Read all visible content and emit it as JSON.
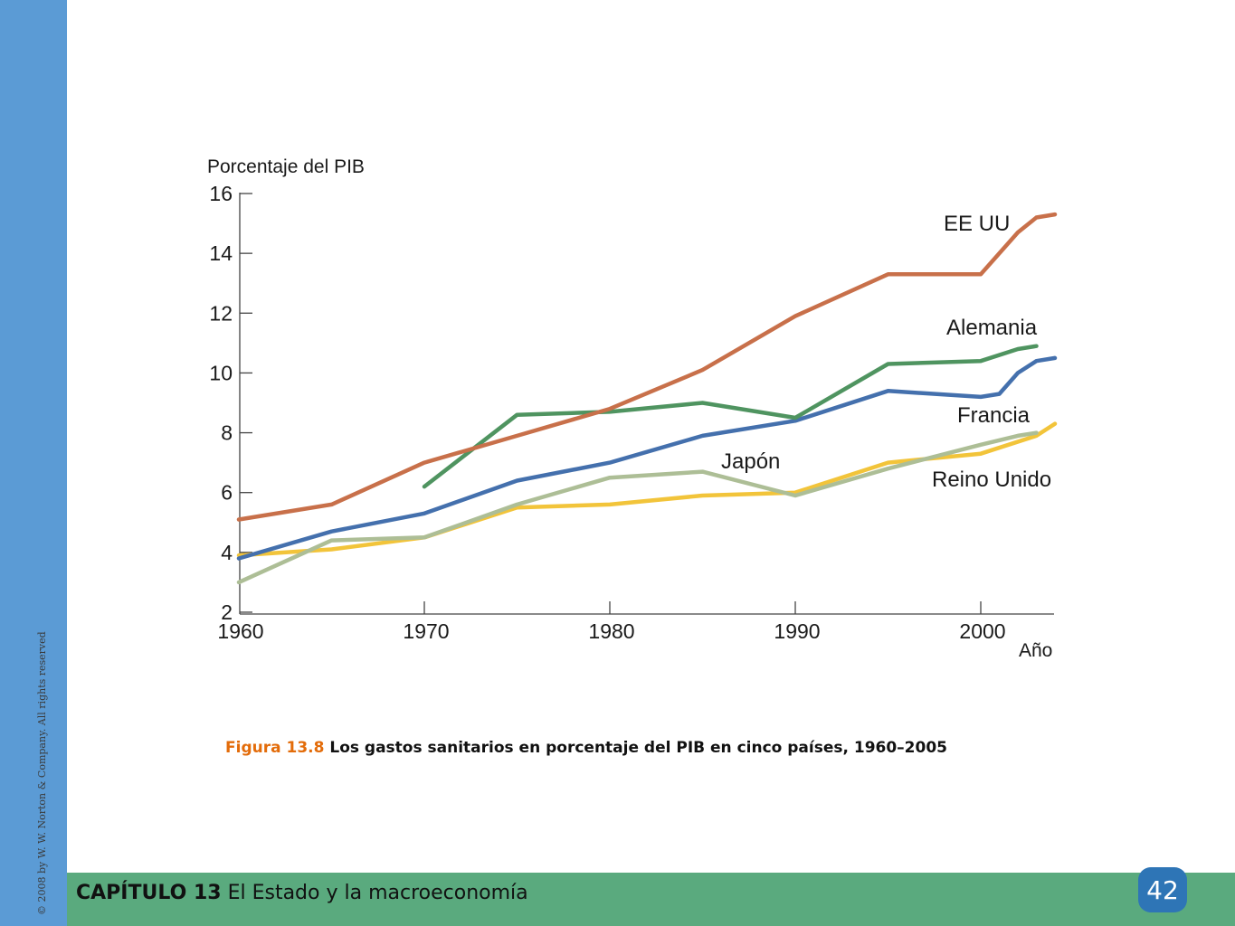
{
  "footer": {
    "copyright": "© 2008 by W. W. Norton & Company. All rights reserved",
    "chapter_label": "CAPÍTULO 13",
    "chapter_title": "El Estado y la macroeconomía",
    "page_number": "42"
  },
  "caption": {
    "figure_label": "Figura 13.8",
    "text": "Los gastos sanitarios en porcentaje del PIB en cinco países, 1960–2005"
  },
  "chart_data": {
    "type": "line",
    "ylabel": "Porcentaje del PIB",
    "xlabel": "Año",
    "ylim": [
      2,
      16
    ],
    "xlim": [
      1960,
      2004
    ],
    "yticks": [
      16,
      14,
      12,
      10,
      8,
      6,
      4,
      2
    ],
    "xticks": [
      1960,
      1970,
      1980,
      1990,
      2000
    ],
    "series": [
      {
        "name": "EE UU",
        "color": "#c8704a",
        "points": [
          [
            1960,
            5.1
          ],
          [
            1965,
            5.6
          ],
          [
            1970,
            7.0
          ],
          [
            1975,
            7.9
          ],
          [
            1980,
            8.8
          ],
          [
            1985,
            10.1
          ],
          [
            1990,
            11.9
          ],
          [
            1995,
            13.3
          ],
          [
            2000,
            13.3
          ],
          [
            2002,
            14.7
          ],
          [
            2003,
            15.2
          ],
          [
            2004,
            15.3
          ]
        ]
      },
      {
        "name": "Alemania",
        "color": "#4f9460",
        "points": [
          [
            1970,
            6.2
          ],
          [
            1975,
            8.6
          ],
          [
            1980,
            8.7
          ],
          [
            1985,
            9.0
          ],
          [
            1990,
            8.5
          ],
          [
            1995,
            10.3
          ],
          [
            2000,
            10.4
          ],
          [
            2002,
            10.8
          ],
          [
            2003,
            10.9
          ]
        ]
      },
      {
        "name": "Francia",
        "color": "#4470ad",
        "points": [
          [
            1960,
            3.8
          ],
          [
            1965,
            4.7
          ],
          [
            1970,
            5.3
          ],
          [
            1975,
            6.4
          ],
          [
            1980,
            7.0
          ],
          [
            1985,
            7.9
          ],
          [
            1990,
            8.4
          ],
          [
            1995,
            9.4
          ],
          [
            2000,
            9.2
          ],
          [
            2001,
            9.3
          ],
          [
            2002,
            10.0
          ],
          [
            2003,
            10.4
          ],
          [
            2004,
            10.5
          ]
        ]
      },
      {
        "name": "Japón",
        "color": "#adbe96",
        "points": [
          [
            1960,
            3.0
          ],
          [
            1965,
            4.4
          ],
          [
            1970,
            4.5
          ],
          [
            1975,
            5.6
          ],
          [
            1980,
            6.5
          ],
          [
            1985,
            6.7
          ],
          [
            1990,
            5.9
          ],
          [
            1995,
            6.8
          ],
          [
            2000,
            7.6
          ],
          [
            2002,
            7.9
          ],
          [
            2003,
            8.0
          ]
        ]
      },
      {
        "name": "Reino Unido",
        "color": "#f2c43a",
        "points": [
          [
            1960,
            3.9
          ],
          [
            1965,
            4.1
          ],
          [
            1970,
            4.5
          ],
          [
            1975,
            5.5
          ],
          [
            1980,
            5.6
          ],
          [
            1985,
            5.9
          ],
          [
            1990,
            6.0
          ],
          [
            1995,
            7.0
          ],
          [
            2000,
            7.3
          ],
          [
            2003,
            7.9
          ],
          [
            2004,
            8.3
          ]
        ]
      }
    ]
  }
}
